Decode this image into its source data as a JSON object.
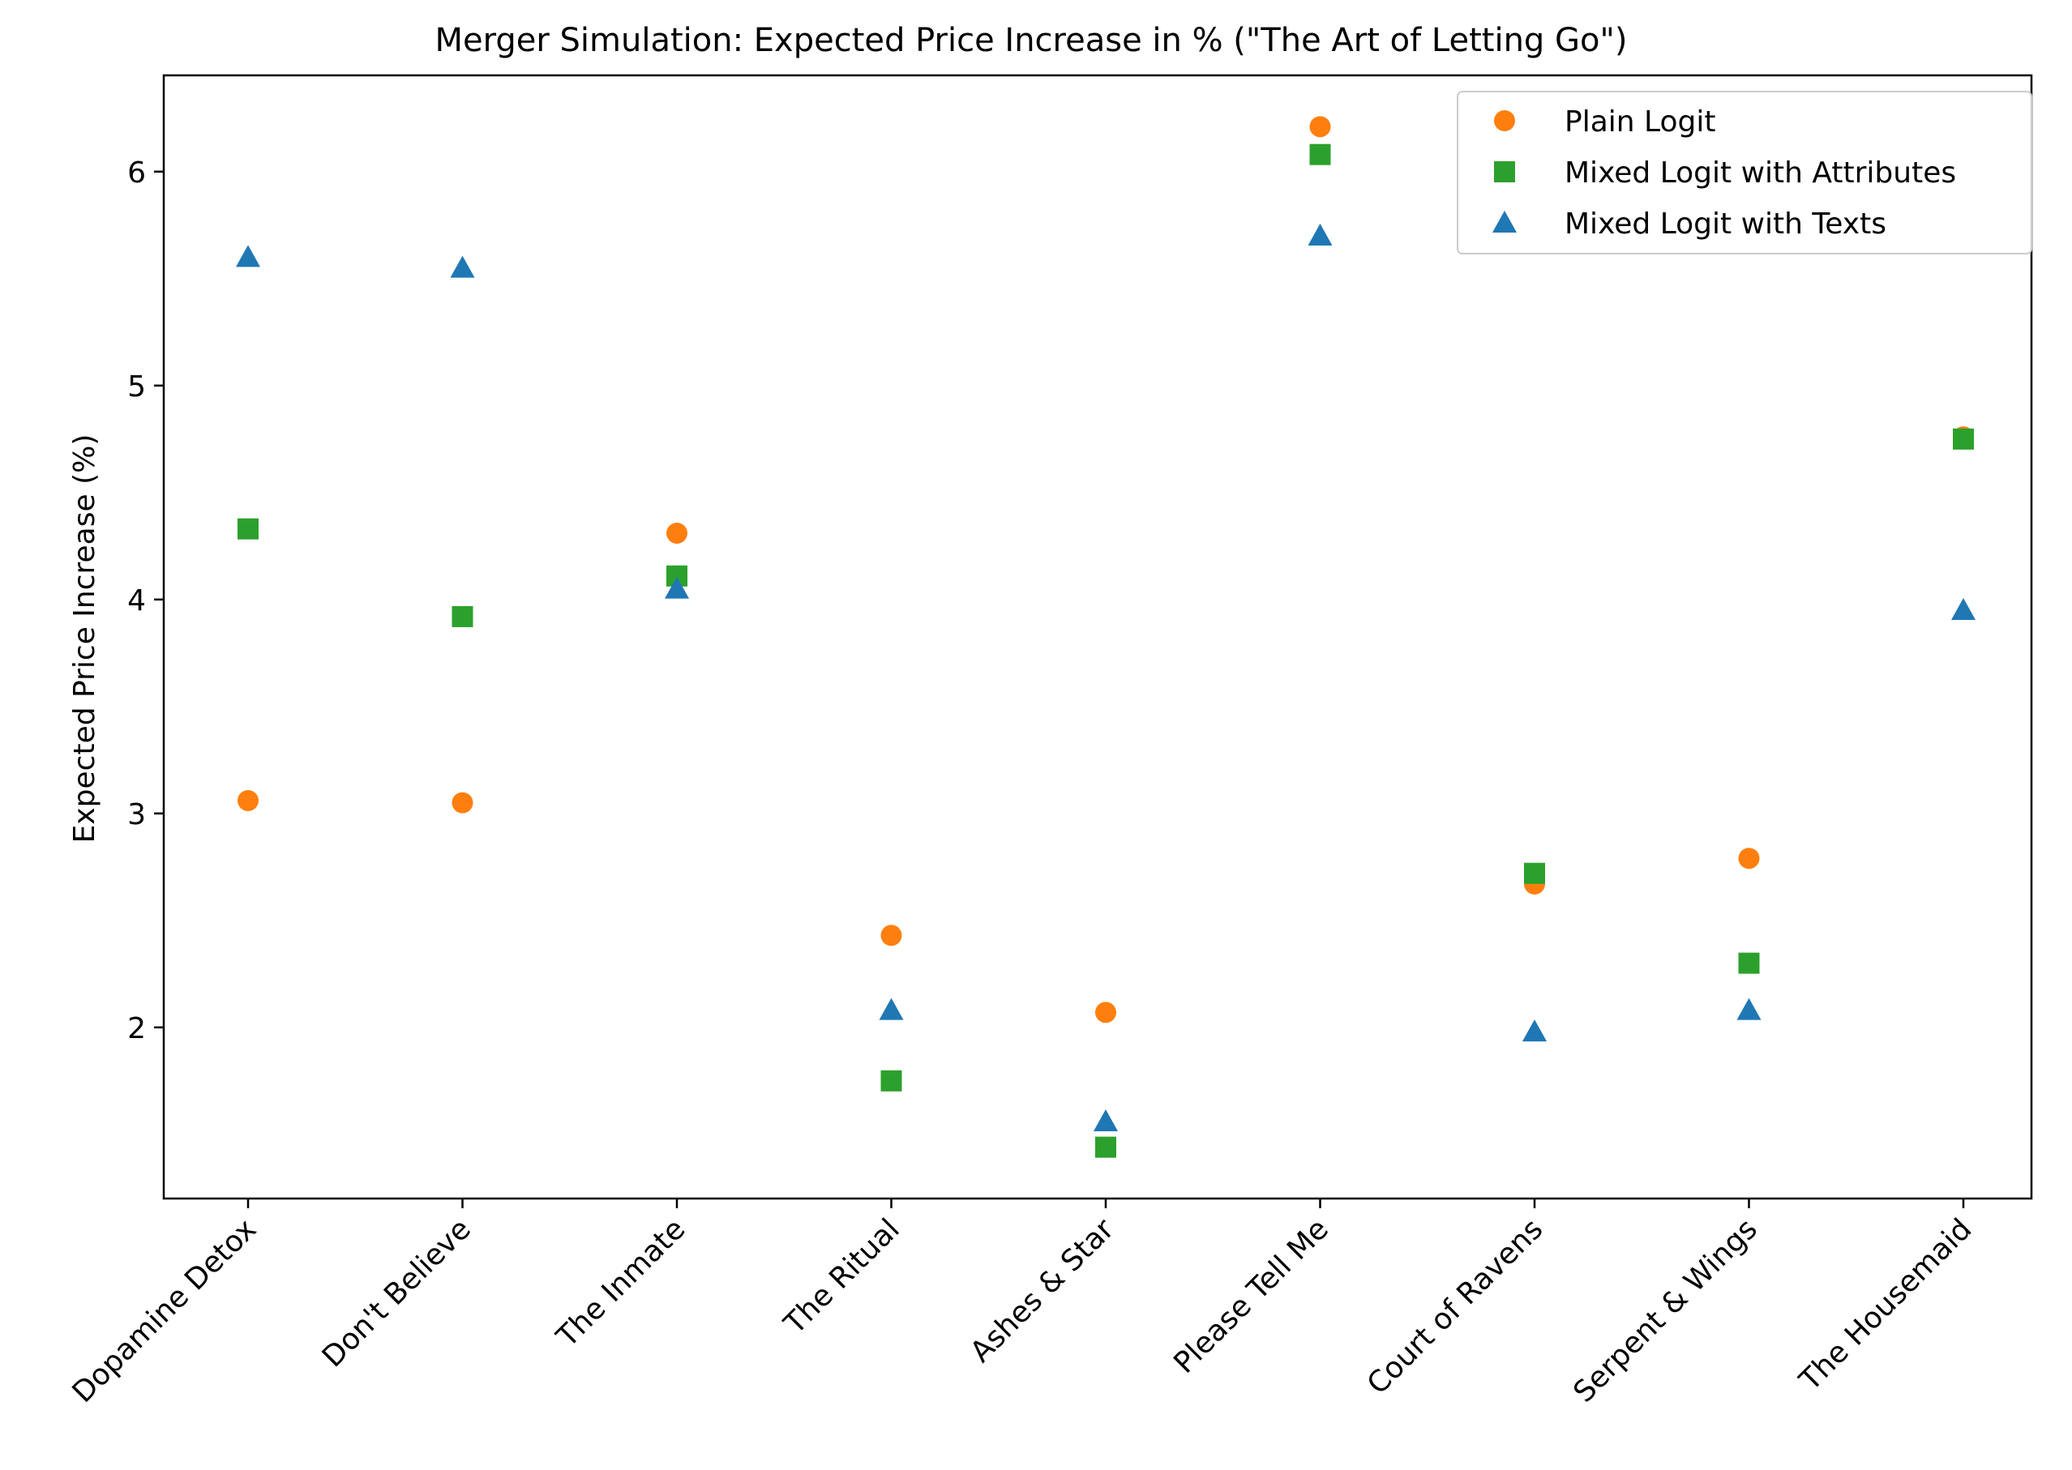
{
  "chart_data": {
    "type": "scatter",
    "title": "Merger Simulation: Expected Price Increase in % (\"The Art of Letting Go\")",
    "xlabel": "",
    "ylabel": "Expected Price Increase (%)",
    "categories": [
      "Dopamine Detox",
      "Don't Believe",
      "The Inmate",
      "The Ritual",
      "Ashes & Star",
      "Please Tell Me",
      "Court of Ravens",
      "Serpent & Wings",
      "The Housemaid"
    ],
    "ylim": [
      1.2,
      6.45
    ],
    "yticks": [
      2,
      3,
      4,
      5,
      6
    ],
    "grid": false,
    "legend_position": "top-right",
    "series": [
      {
        "name": "Plain Logit",
        "marker": "circle",
        "color": "#ff7f0e",
        "values": [
          3.06,
          3.05,
          4.31,
          2.43,
          2.07,
          6.21,
          2.67,
          2.79,
          4.76
        ]
      },
      {
        "name": "Mixed Logit with Attributes",
        "marker": "square",
        "color": "#2ca02c",
        "values": [
          4.33,
          3.92,
          4.11,
          1.75,
          1.44,
          6.08,
          2.72,
          2.3,
          4.75
        ]
      },
      {
        "name": "Mixed Logit with Texts",
        "marker": "triangle",
        "color": "#1f77b4",
        "values": [
          5.6,
          5.55,
          4.05,
          2.08,
          1.56,
          5.7,
          1.98,
          2.08,
          3.95
        ]
      }
    ]
  }
}
